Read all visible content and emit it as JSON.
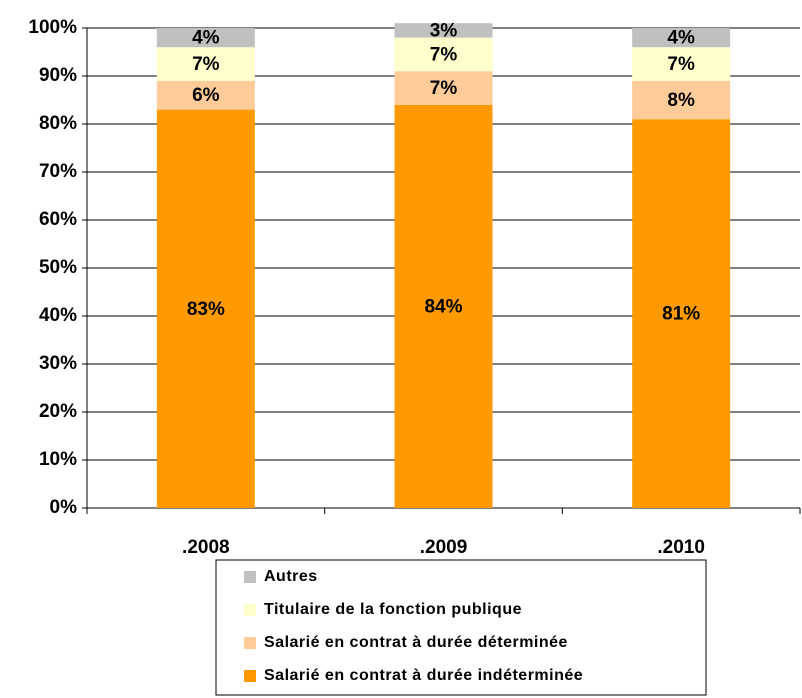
{
  "chart_data": {
    "type": "stacked_bar",
    "categories": [
      ".2008",
      ".2009",
      ".2010"
    ],
    "series": [
      {
        "name": "Salarié en contrat à durée indéterminée",
        "color": "#ff9900",
        "values": [
          83,
          84,
          81
        ],
        "value_labels": [
          "83%",
          "84%",
          "81%"
        ]
      },
      {
        "name": "Salarié en contrat à durée déterminée",
        "color": "#ffcc99",
        "values": [
          6,
          7,
          8
        ],
        "value_labels": [
          "6%",
          "7%",
          "8%"
        ]
      },
      {
        "name": "Titulaire de la fonction publique",
        "color": "#ffffcc",
        "values": [
          7,
          7,
          7
        ],
        "value_labels": [
          "7%",
          "7%",
          "7%"
        ]
      },
      {
        "name": "Autres",
        "color": "#c0c0c0",
        "values": [
          4,
          3,
          4
        ],
        "value_labels": [
          "4%",
          "3%",
          "4%"
        ]
      }
    ],
    "ylim": [
      0,
      100
    ],
    "yticks": [
      {
        "value": 0,
        "label": "0%"
      },
      {
        "value": 10,
        "label": "10%"
      },
      {
        "value": 20,
        "label": "20%"
      },
      {
        "value": 30,
        "label": "30%"
      },
      {
        "value": 40,
        "label": "40%"
      },
      {
        "value": 50,
        "label": "50%"
      },
      {
        "value": 60,
        "label": "60%"
      },
      {
        "value": 70,
        "label": "70%"
      },
      {
        "value": 80,
        "label": "80%"
      },
      {
        "value": 90,
        "label": "90%"
      },
      {
        "value": 100,
        "label": "100%"
      }
    ],
    "grid": true,
    "legend": "bottom"
  }
}
